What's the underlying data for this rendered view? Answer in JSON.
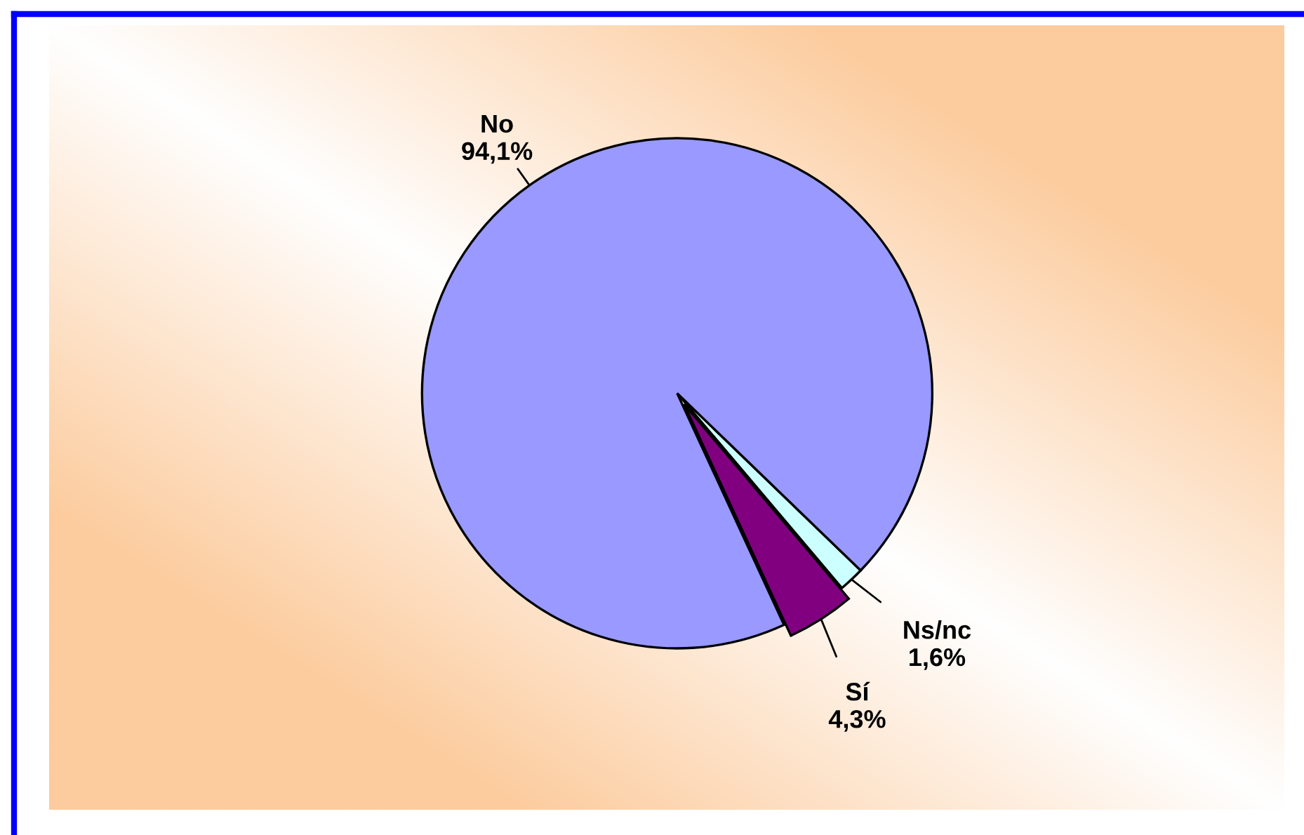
{
  "chart_data": {
    "type": "pie",
    "categories": [
      "Ns/nc",
      "Sí",
      "No"
    ],
    "values": [
      1.6,
      4.3,
      94.1
    ],
    "value_labels": [
      "1,6%",
      "4,3%",
      "94,1%"
    ],
    "colors": [
      "#ccffff",
      "#800080",
      "#9999ff"
    ],
    "legend": false
  }
}
